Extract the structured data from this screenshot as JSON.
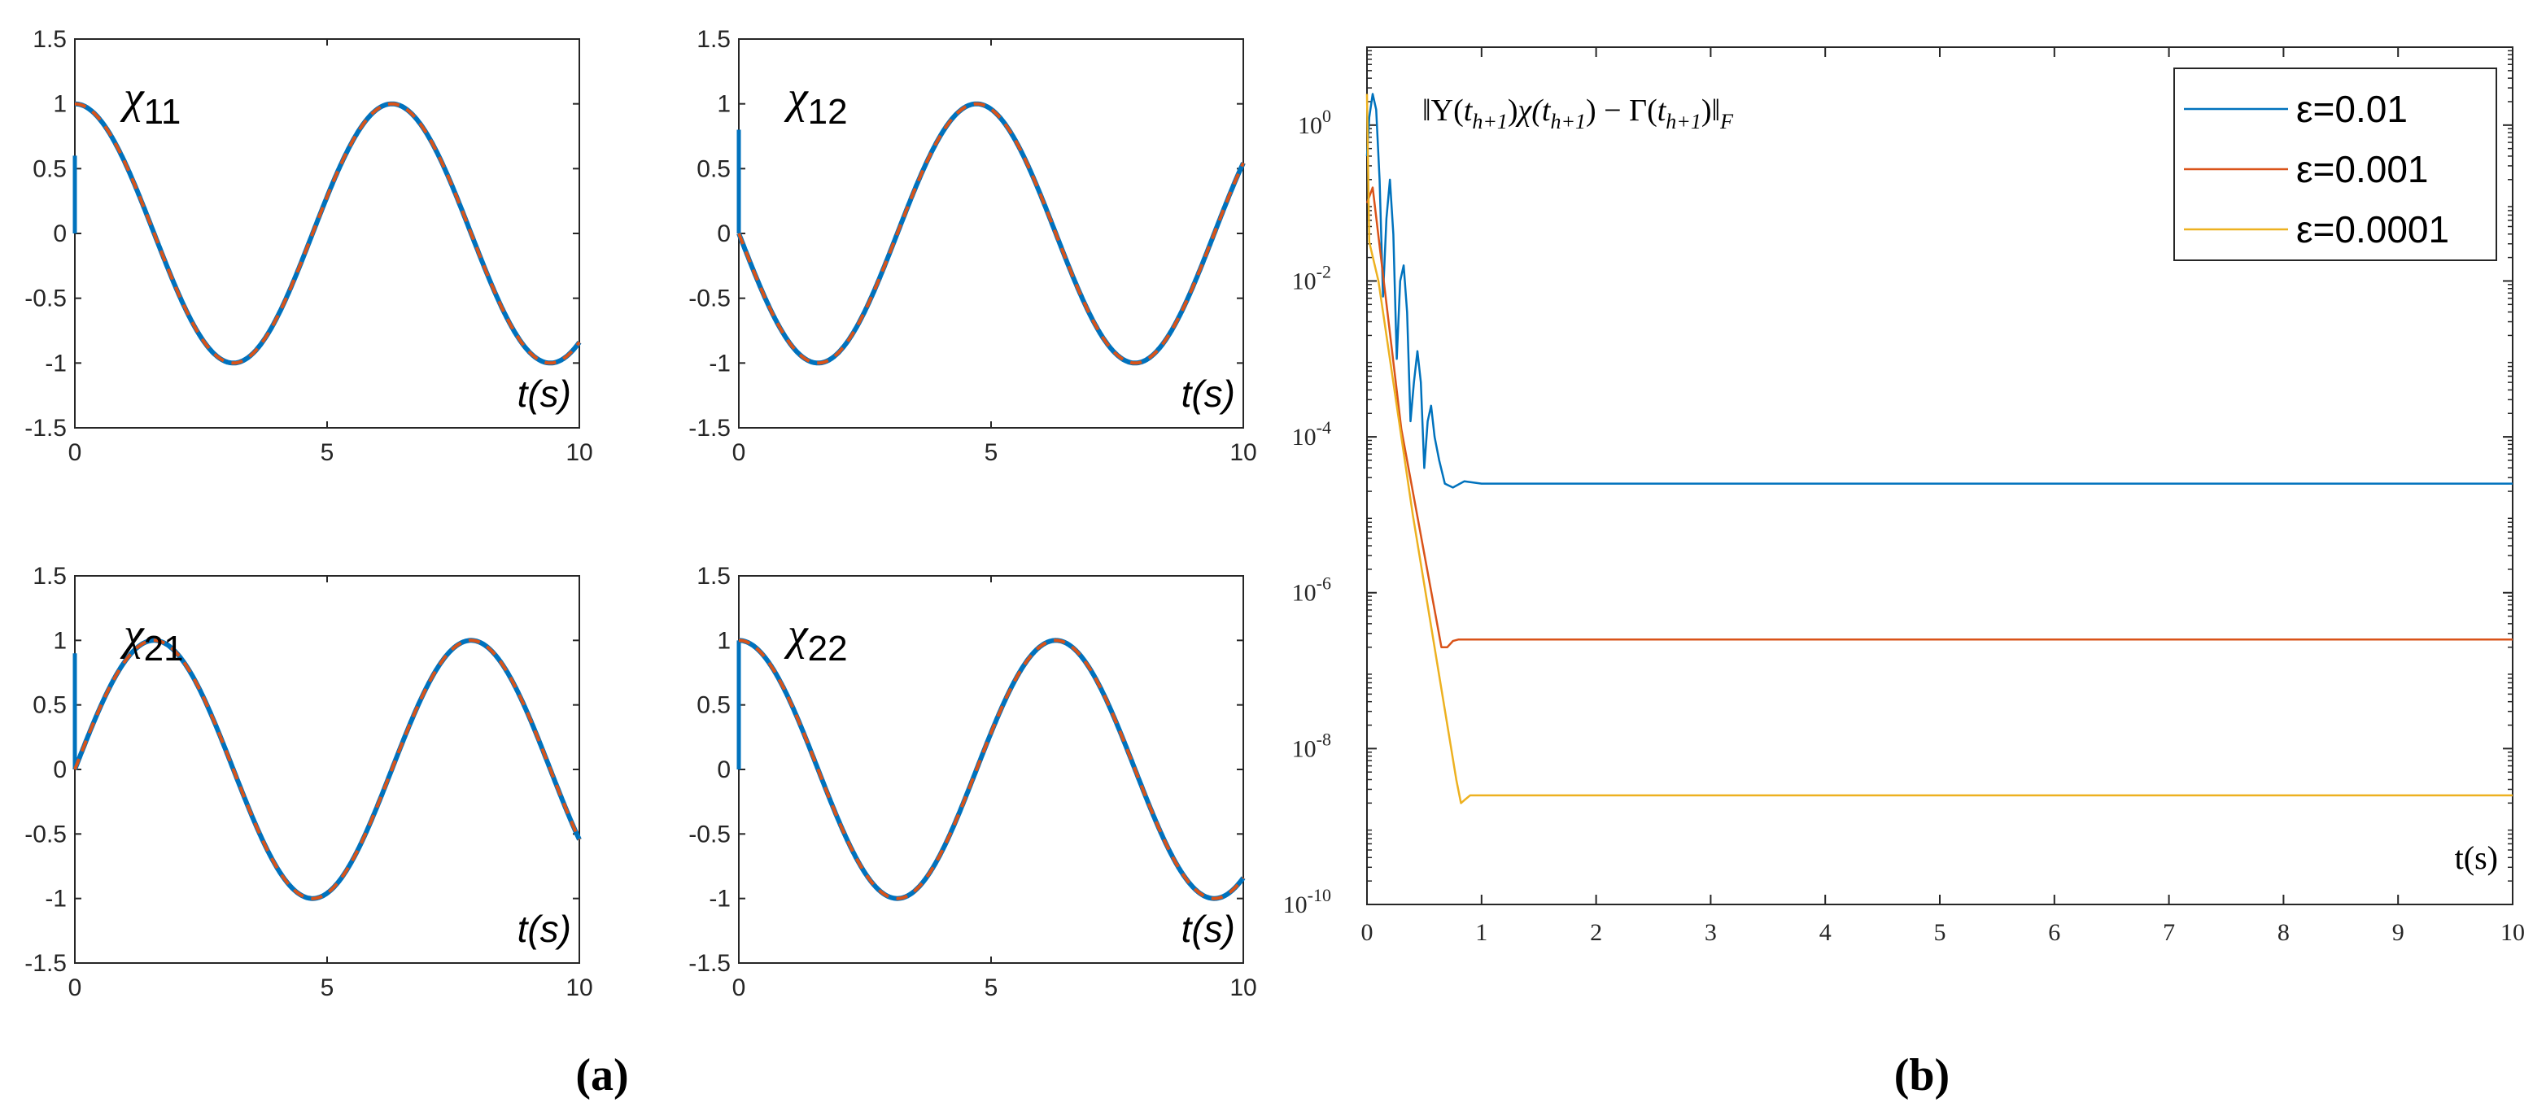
{
  "panel_labels": {
    "a": "(a)",
    "b": "(b)"
  },
  "chart_data": [
    {
      "id": "x11",
      "type": "line",
      "panel": "(a)",
      "label": "χ11",
      "label_main": "χ",
      "label_sub": "11",
      "xlabel": "t(s)",
      "xlim": [
        0,
        10
      ],
      "ylim": [
        -1.5,
        1.5
      ],
      "xticks": [
        "0",
        "5",
        "10"
      ],
      "yticks": [
        "1.5",
        "1",
        "0.5",
        "0",
        "-0.5",
        "-1",
        "-1.5"
      ],
      "grid": false,
      "function": "cos(t)",
      "series_colors": [
        "#0072BD",
        "#D95319"
      ],
      "start_spike": [
        0,
        0.6
      ]
    },
    {
      "id": "x12",
      "type": "line",
      "panel": "(a)",
      "label": "χ12",
      "label_main": "χ",
      "label_sub": "12",
      "xlabel": "t(s)",
      "xlim": [
        0,
        10
      ],
      "ylim": [
        -1.5,
        1.5
      ],
      "xticks": [
        "0",
        "5",
        "10"
      ],
      "yticks": [
        "1.5",
        "1",
        "0.5",
        "0",
        "-0.5",
        "-1",
        "-1.5"
      ],
      "grid": false,
      "function": "-sin(t)",
      "series_colors": [
        "#0072BD",
        "#D95319"
      ],
      "start_spike": [
        0,
        0.8
      ]
    },
    {
      "id": "x21",
      "type": "line",
      "panel": "(a)",
      "label": "χ21",
      "label_main": "χ",
      "label_sub": "21",
      "xlabel": "t(s)",
      "xlim": [
        0,
        10
      ],
      "ylim": [
        -1.5,
        1.5
      ],
      "xticks": [
        "0",
        "5",
        "10"
      ],
      "yticks": [
        "1.5",
        "1",
        "0.5",
        "0",
        "-0.5",
        "-1",
        "-1.5"
      ],
      "grid": false,
      "function": "sin(t)",
      "series_colors": [
        "#0072BD",
        "#D95319"
      ],
      "start_spike": [
        0,
        0.9
      ]
    },
    {
      "id": "x22",
      "type": "line",
      "panel": "(a)",
      "label": "χ22",
      "label_main": "χ",
      "label_sub": "22",
      "xlabel": "t(s)",
      "xlim": [
        0,
        10
      ],
      "ylim": [
        -1.5,
        1.5
      ],
      "xticks": [
        "0",
        "5",
        "10"
      ],
      "yticks": [
        "1.5",
        "1",
        "0.5",
        "0",
        "-0.5",
        "-1",
        "-1.5"
      ],
      "grid": false,
      "function": "cos(t)",
      "series_colors": [
        "#0072BD",
        "#D95319"
      ],
      "start_spike": [
        0,
        1
      ]
    },
    {
      "id": "residual",
      "type": "line",
      "panel": "(b)",
      "yscale": "log",
      "annotation": "‖Υ(t_{h+1})χ(t_{h+1}) − Γ(t_{h+1})‖_F",
      "xlabel": "t(s)",
      "xlim": [
        0,
        10
      ],
      "ylim_exp": [
        -10,
        1
      ],
      "xticks": [
        "0",
        "1",
        "2",
        "3",
        "4",
        "5",
        "6",
        "7",
        "8",
        "9",
        "10"
      ],
      "yticks_exp": [
        -10,
        -8,
        -6,
        -4,
        -2,
        0
      ],
      "ytick_base": "10",
      "grid": false,
      "legend_position": "top-right",
      "series": [
        {
          "name": "ε=0.01",
          "color": "#0072BD",
          "x": [
            0,
            0.02,
            0.05,
            0.08,
            0.11,
            0.14,
            0.17,
            0.2,
            0.23,
            0.26,
            0.29,
            0.32,
            0.35,
            0.38,
            0.41,
            0.44,
            0.47,
            0.5,
            0.53,
            0.56,
            0.59,
            0.63,
            0.68,
            0.75,
            0.85,
            1,
            2,
            4,
            6,
            8,
            10
          ],
          "log10_y": [
            -0.4,
            0.1,
            0.4,
            0.2,
            -0.7,
            -2.2,
            -1.2,
            -0.7,
            -1.4,
            -3.0,
            -2.0,
            -1.8,
            -2.4,
            -3.8,
            -3.3,
            -2.9,
            -3.3,
            -4.4,
            -3.8,
            -3.6,
            -4.0,
            -4.3,
            -4.6,
            -4.65,
            -4.57,
            -4.6,
            -4.6,
            -4.6,
            -4.6,
            -4.6,
            -4.6
          ]
        },
        {
          "name": "ε=0.001",
          "color": "#D95319",
          "x": [
            0,
            0.05,
            0.3,
            0.6,
            0.65,
            0.7,
            0.75,
            0.8,
            1,
            2,
            4,
            6,
            8,
            10
          ],
          "log10_y": [
            -1.0,
            -0.8,
            -3.9,
            -6.3,
            -6.7,
            -6.7,
            -6.62,
            -6.6,
            -6.6,
            -6.6,
            -6.6,
            -6.6,
            -6.6,
            -6.6
          ]
        },
        {
          "name": "ε=0.0001",
          "color": "#EDB120",
          "x": [
            0,
            0.02,
            0.1,
            0.4,
            0.78,
            0.82,
            0.86,
            0.9,
            1,
            2,
            4,
            6,
            8,
            10
          ],
          "log10_y": [
            0.4,
            -1.5,
            -2.0,
            -5.0,
            -8.4,
            -8.7,
            -8.65,
            -8.6,
            -8.6,
            -8.6,
            -8.6,
            -8.6,
            -8.6,
            -8.6
          ]
        }
      ]
    }
  ]
}
